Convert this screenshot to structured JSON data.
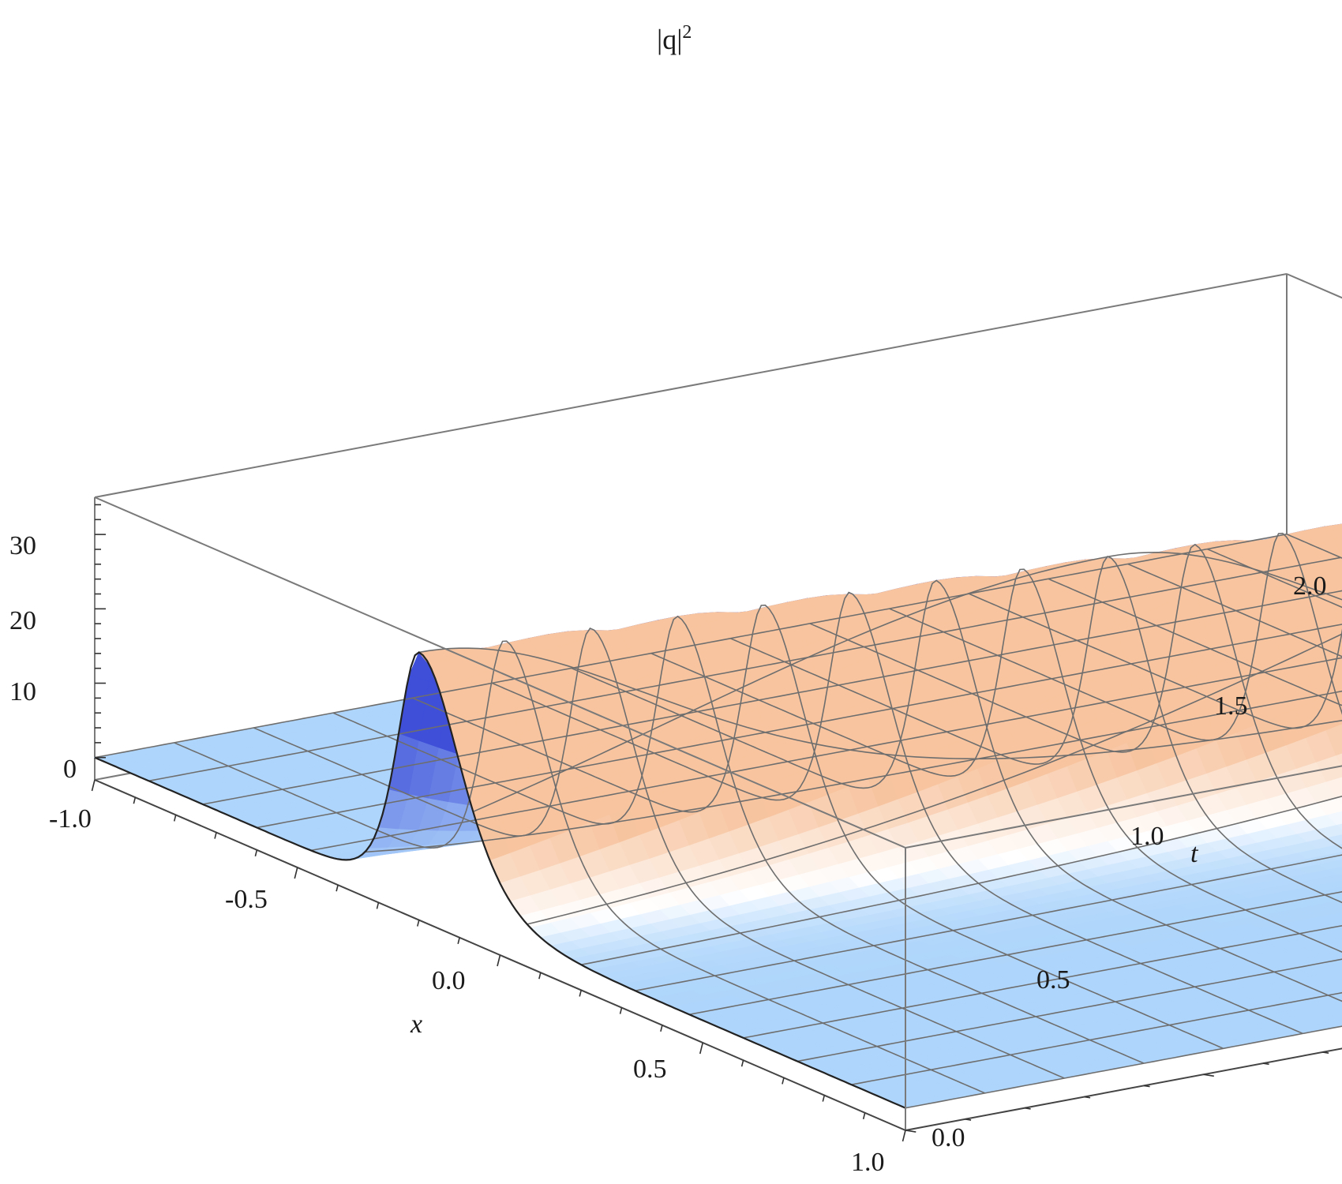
{
  "chart_data": {
    "type": "surface3d",
    "function": "soliton",
    "zlabel_base": "|q|",
    "zlabel_exp": "2",
    "xlabel": "x",
    "ylabel": "t",
    "x_range": [
      -1.0,
      1.0
    ],
    "t_range": [
      0.0,
      2.0
    ],
    "z_range": [
      -3.0,
      35.0
    ],
    "x_ticks": [
      "-1.0",
      "-0.5",
      "0.0",
      "0.5",
      "1.0"
    ],
    "t_ticks": [
      "0.0",
      "0.5",
      "1.0",
      "1.5",
      "2.0"
    ],
    "z_ticks": [
      "0",
      "10",
      "20",
      "30"
    ],
    "peak_height": 33.0,
    "peak_x_at_t0": -0.2,
    "peak_x_at_t2": 0.05,
    "mesh_lines": 15,
    "colors": {
      "base": "#aed5fb",
      "rise_left": "#3f4fd8",
      "rise_right": "#f7c49f",
      "mesh": "#6e6e6e",
      "box": "#7a7a7a"
    }
  }
}
